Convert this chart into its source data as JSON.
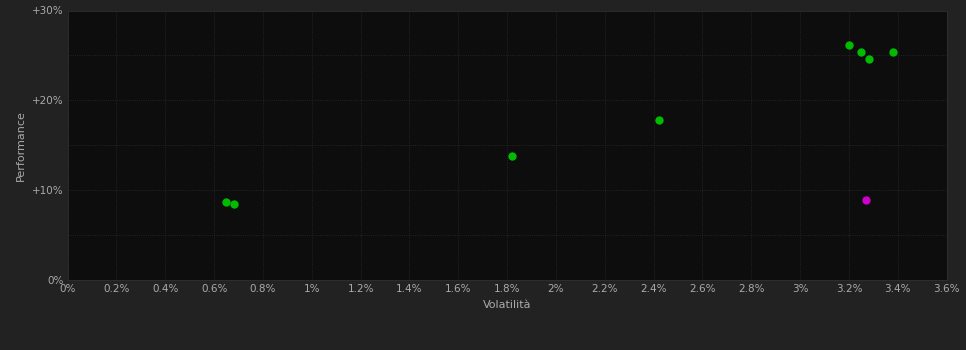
{
  "background_color": "#222222",
  "plot_bg_color": "#0d0d0d",
  "xlabel": "Volatilità",
  "ylabel": "Performance",
  "xlabel_color": "#aaaaaa",
  "ylabel_color": "#aaaaaa",
  "tick_color": "#aaaaaa",
  "xlim": [
    0,
    0.036
  ],
  "ylim": [
    0,
    0.3
  ],
  "xticks": [
    0,
    0.002,
    0.004,
    0.006,
    0.008,
    0.01,
    0.012,
    0.014,
    0.016,
    0.018,
    0.02,
    0.022,
    0.024,
    0.026,
    0.028,
    0.03,
    0.032,
    0.034,
    0.036
  ],
  "yticks": [
    0,
    0.05,
    0.1,
    0.15,
    0.2,
    0.25,
    0.3
  ],
  "ytick_labels_show": [
    0,
    0.1,
    0.2,
    0.3
  ],
  "green_points": [
    [
      0.0065,
      0.087
    ],
    [
      0.0068,
      0.085
    ],
    [
      0.0182,
      0.138
    ],
    [
      0.0242,
      0.178
    ],
    [
      0.032,
      0.262
    ],
    [
      0.0325,
      0.254
    ],
    [
      0.0328,
      0.246
    ],
    [
      0.0338,
      0.254
    ]
  ],
  "magenta_points": [
    [
      0.0327,
      0.089
    ]
  ],
  "green_color": "#00bb00",
  "magenta_color": "#cc00cc",
  "marker_size": 6,
  "font_size_labels": 8,
  "font_size_ticks": 7.5
}
